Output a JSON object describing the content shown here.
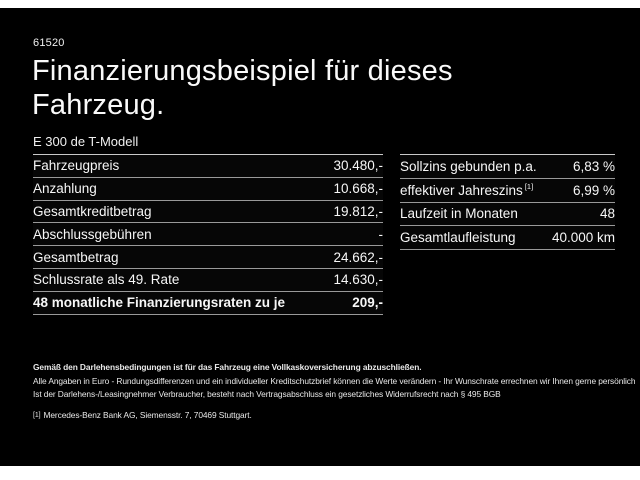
{
  "meta": {
    "code": "61520"
  },
  "header": {
    "title_line1": "Finanzierungsbeispiel für dieses",
    "title_line2": "Fahrzeug.",
    "model": "E 300 de T-Modell"
  },
  "finance_table": {
    "rows": [
      {
        "label": "Fahrzeugpreis",
        "value": "30.480,-"
      },
      {
        "label": "Anzahlung",
        "value": "10.668,-"
      },
      {
        "label": "Gesamtkreditbetrag",
        "value": "19.812,-"
      },
      {
        "label": "Abschlussgebühren",
        "value": "-"
      },
      {
        "label": "Gesamtbetrag",
        "value": "24.662,-"
      },
      {
        "label": "Schlussrate als 49. Rate",
        "value": "14.630,-"
      },
      {
        "label": "48 monatliche Finanzierungsraten zu je",
        "value": "209,-"
      }
    ]
  },
  "conditions_table": {
    "rows": [
      {
        "label": "Sollzins gebunden p.a.",
        "value": "6,83 %"
      },
      {
        "label": "effektiver Jahreszins",
        "sup": "[1]",
        "value": "6,99 %"
      },
      {
        "label": "Laufzeit in Monaten",
        "value": "48"
      },
      {
        "label": "Gesamtlaufleistung",
        "value": "40.000 km"
      }
    ]
  },
  "footnotes": {
    "bold_line": "Gemäß den Darlehensbedingungen ist für das Fahrzeug eine Vollkaskoversicherung abzuschließen.",
    "line2": "Alle Angaben in Euro - Rundungsdifferenzen und ein individueller Kreditschutzbrief können die Werte verändern - Ihr Wunschrate errechnen wir Ihnen gerne persönlich",
    "line3": "Ist der Darlehens-/Leasingnehmer Verbraucher, besteht nach Vertragsabschluss ein gesetzliches Widerrufsrecht nach § 495 BGB",
    "ref_marker": "[1]",
    "ref_text": "Mercedes-Benz Bank AG, Siemensstr. 7, 70469 Stuttgart."
  },
  "colors": {
    "background": "#000000",
    "text": "#f7f7f7",
    "divider": "#999999",
    "frame": "#ffffff"
  }
}
